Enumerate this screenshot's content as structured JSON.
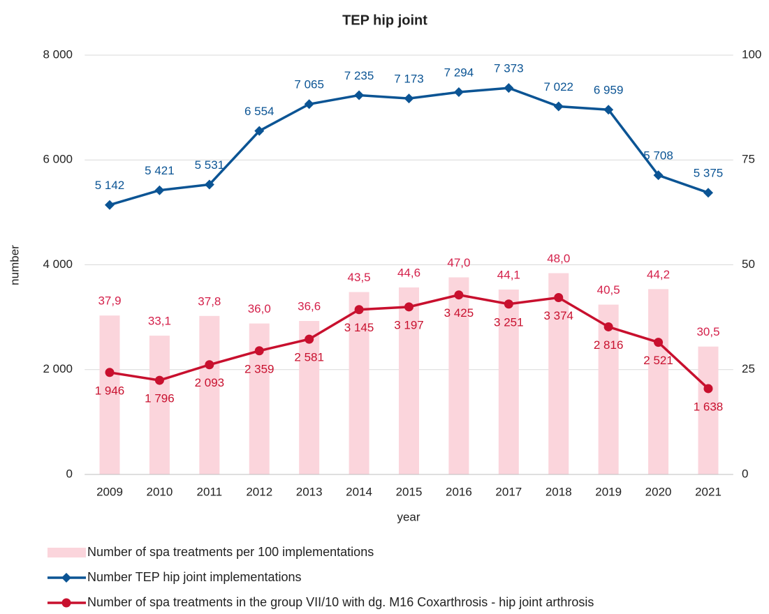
{
  "chart_data": {
    "type": "combo",
    "title": "TEP hip joint",
    "x_label": "year",
    "y_label": "number",
    "categories": [
      "2009",
      "2010",
      "2011",
      "2012",
      "2013",
      "2014",
      "2015",
      "2016",
      "2017",
      "2018",
      "2019",
      "2020",
      "2021"
    ],
    "ylim": [
      0,
      8000
    ],
    "yticks": [
      {
        "value": 0,
        "label": "0"
      },
      {
        "value": 2000,
        "label": "2 000"
      },
      {
        "value": 4000,
        "label": "4 000"
      },
      {
        "value": 6000,
        "label": "6 000"
      },
      {
        "value": 8000,
        "label": "8 000"
      }
    ],
    "y2lim": [
      0,
      100
    ],
    "y2ticks": [
      0,
      25,
      50,
      75,
      100
    ],
    "grid": true,
    "legend": "bottom",
    "series": [
      {
        "name": "Number of spa treatments per 100 implementations",
        "type": "bar",
        "axis": "y2",
        "color": "#fbd5dc",
        "values": [
          37.9,
          33.1,
          37.8,
          36.0,
          36.6,
          43.5,
          44.6,
          47.0,
          44.1,
          48.0,
          40.5,
          44.2,
          30.5
        ],
        "value_labels": [
          "37,9",
          "33,1",
          "37,8",
          "36,0",
          "36,6",
          "43,5",
          "44,6",
          "47,0",
          "44,1",
          "48,0",
          "40,5",
          "44,2",
          "30,5"
        ]
      },
      {
        "name": "Number TEP hip joint implementations",
        "type": "line",
        "marker": "diamond",
        "color": "#0b5494",
        "values": [
          5142,
          5421,
          5531,
          6554,
          7065,
          7235,
          7173,
          7294,
          7373,
          7022,
          6959,
          5708,
          5375
        ],
        "value_labels": [
          "5 142",
          "5 421",
          "5 531",
          "6 554",
          "7 065",
          "7 235",
          "7 173",
          "7 294",
          "7 373",
          "7 022",
          "6 959",
          "5 708",
          "5 375"
        ]
      },
      {
        "name": "Number of spa treatments in the group VII/10 with dg. M16 Coxarthrosis - hip joint arthrosis",
        "type": "line",
        "marker": "circle",
        "color": "#c8102e",
        "values": [
          1946,
          1796,
          2093,
          2359,
          2581,
          3145,
          3197,
          3425,
          3251,
          3374,
          2816,
          2521,
          1638
        ],
        "value_labels": [
          "1 946",
          "1 796",
          "2 093",
          "2 359",
          "2 581",
          "3 145",
          "3 197",
          "3 425",
          "3 251",
          "3 374",
          "2 816",
          "2 521",
          "1 638"
        ]
      }
    ]
  }
}
